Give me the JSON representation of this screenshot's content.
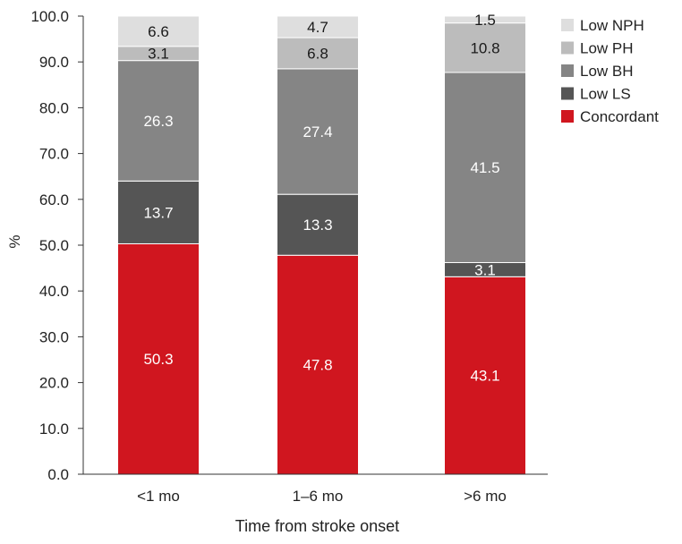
{
  "chart_data": {
    "type": "bar",
    "stacked": true,
    "title": "",
    "xlabel": "Time from stroke onset",
    "ylabel": "%",
    "ylim": [
      0,
      100
    ],
    "yticks": [
      "0.0",
      "10.0",
      "20.0",
      "30.0",
      "40.0",
      "50.0",
      "60.0",
      "70.0",
      "80.0",
      "90.0",
      "100.0"
    ],
    "categories": [
      "<1 mo",
      "1–6 mo",
      ">6 mo"
    ],
    "grid": false,
    "legend_position": "top-right",
    "series": [
      {
        "name": "Concordant",
        "color": "#d0161f",
        "label_color": "#ffffff",
        "values": [
          50.3,
          47.8,
          43.1
        ]
      },
      {
        "name": "Low LS",
        "color": "#555555",
        "label_color": "#ffffff",
        "values": [
          13.7,
          13.3,
          3.1
        ]
      },
      {
        "name": "Low BH",
        "color": "#858585",
        "label_color": "#ffffff",
        "values": [
          26.3,
          27.4,
          41.5
        ]
      },
      {
        "name": "Low PH",
        "color": "#bcbcbc",
        "label_color": "#1a1a1a",
        "values": [
          3.1,
          6.8,
          10.8
        ]
      },
      {
        "name": "Low NPH",
        "color": "#dedede",
        "label_color": "#1a1a1a",
        "values": [
          6.6,
          4.7,
          1.5
        ]
      }
    ],
    "legend_order": [
      "Low NPH",
      "Low PH",
      "Low BH",
      "Low LS",
      "Concordant"
    ]
  }
}
